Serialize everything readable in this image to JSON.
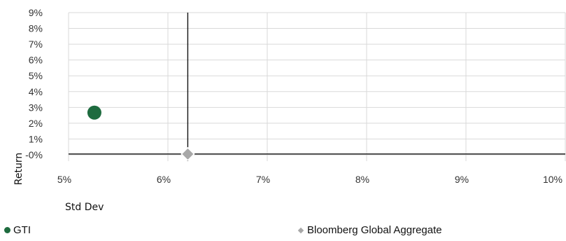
{
  "chart_data": {
    "type": "scatter",
    "title": "",
    "xlabel": "Std Dev",
    "ylabel": "Return",
    "xlim": [
      5,
      10
    ],
    "ylim": [
      -0.4,
      9
    ],
    "x_ticks": [
      5,
      6,
      7,
      8,
      9,
      10
    ],
    "y_ticks": [
      0,
      1,
      2,
      3,
      4,
      5,
      6,
      7,
      8,
      9
    ],
    "x_tick_labels": [
      "5%",
      "6%",
      "7%",
      "8%",
      "9%",
      "10%"
    ],
    "y_tick_labels": [
      "-0%",
      "1%",
      "2%",
      "3%",
      "4%",
      "5%",
      "6%",
      "7%",
      "8%",
      "9%"
    ],
    "grid": true,
    "legend_position": "bottom",
    "reference_lines": {
      "x": 6.2,
      "y": 0.05
    },
    "series": [
      {
        "name": "GTI",
        "marker": "circle",
        "color": "#1e6b3f",
        "points": [
          {
            "x": 5.26,
            "y": 2.67
          }
        ]
      },
      {
        "name": "Bloomberg Global Aggregate",
        "marker": "diamond",
        "color": "#a8a8a8",
        "points": [
          {
            "x": 6.2,
            "y": 0.05
          }
        ]
      }
    ]
  }
}
